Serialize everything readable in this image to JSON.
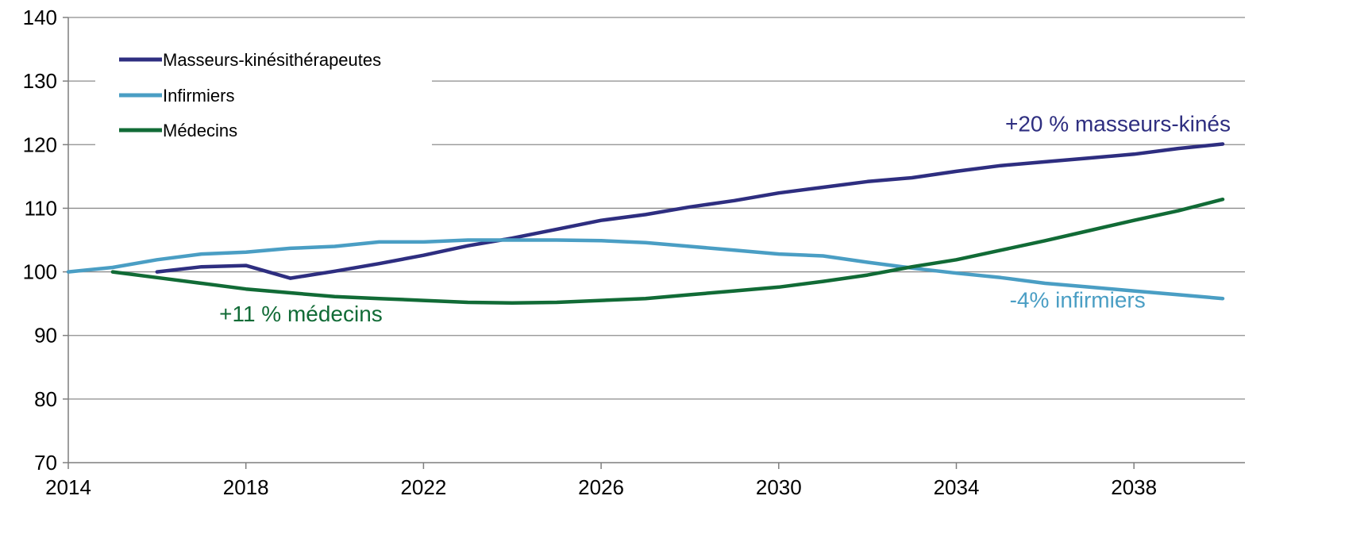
{
  "chart_data": {
    "type": "line",
    "x_ticks": [
      "2014",
      "2018",
      "2022",
      "2026",
      "2030",
      "2034",
      "2038"
    ],
    "y_ticks": [
      "70",
      "80",
      "90",
      "100",
      "110",
      "120",
      "130",
      "140"
    ],
    "xlim": [
      2014,
      2040.5
    ],
    "ylim": [
      70,
      140
    ],
    "grid": "horizontal",
    "legend_position": "top-left",
    "series": [
      {
        "name": "Masseurs-kinésithérapeutes",
        "color": "#2e2e80",
        "x": [
          2016,
          2017,
          2018,
          2019,
          2020,
          2021,
          2022,
          2023,
          2024,
          2025,
          2026,
          2027,
          2028,
          2029,
          2030,
          2031,
          2032,
          2033,
          2034,
          2035,
          2036,
          2037,
          2038,
          2039,
          2040
        ],
        "y": [
          100,
          100.8,
          101,
          99,
          100.1,
          101.3,
          102.6,
          104.1,
          105.3,
          106.7,
          108.1,
          109,
          110.2,
          111.2,
          112.4,
          113.3,
          114.2,
          114.8,
          115.8,
          116.7,
          117.3,
          117.9,
          118.5,
          119.4,
          120.1
        ]
      },
      {
        "name": "Infirmiers",
        "color": "#4a9ec4",
        "x": [
          2014,
          2015,
          2016,
          2017,
          2018,
          2019,
          2020,
          2021,
          2022,
          2023,
          2024,
          2025,
          2026,
          2027,
          2028,
          2029,
          2030,
          2031,
          2032,
          2033,
          2034,
          2035,
          2036,
          2037,
          2038,
          2039,
          2040
        ],
        "y": [
          100,
          100.7,
          101.9,
          102.8,
          103.1,
          103.7,
          104,
          104.7,
          104.7,
          105,
          105,
          105,
          104.9,
          104.6,
          104,
          103.4,
          102.8,
          102.5,
          101.5,
          100.6,
          99.8,
          99.1,
          98.2,
          97.6,
          97,
          96.4,
          95.8
        ]
      },
      {
        "name": "Médecins",
        "color": "#116b36",
        "x": [
          2015,
          2016,
          2017,
          2018,
          2019,
          2020,
          2021,
          2022,
          2023,
          2024,
          2025,
          2026,
          2027,
          2028,
          2029,
          2030,
          2031,
          2032,
          2033,
          2034,
          2035,
          2036,
          2037,
          2038,
          2039,
          2040
        ],
        "y": [
          100,
          99.1,
          98.2,
          97.3,
          96.7,
          96.1,
          95.8,
          95.5,
          95.2,
          95.1,
          95.2,
          95.5,
          95.8,
          96.4,
          97,
          97.6,
          98.5,
          99.5,
          100.8,
          101.9,
          103.4,
          104.9,
          106.5,
          108.1,
          109.6,
          111.4
        ]
      }
    ],
    "annotations": [
      {
        "text": "+20 % masseurs-kinés",
        "color": "#2e2e80",
        "x": 2035.1,
        "y": 122.1
      },
      {
        "text": "-4% infirmiers",
        "color": "#4a9ec4",
        "x": 2035.2,
        "y": 94.4
      },
      {
        "text": "+11 % médecins",
        "color": "#116b36",
        "x": 2017.4,
        "y": 92.2
      }
    ]
  }
}
